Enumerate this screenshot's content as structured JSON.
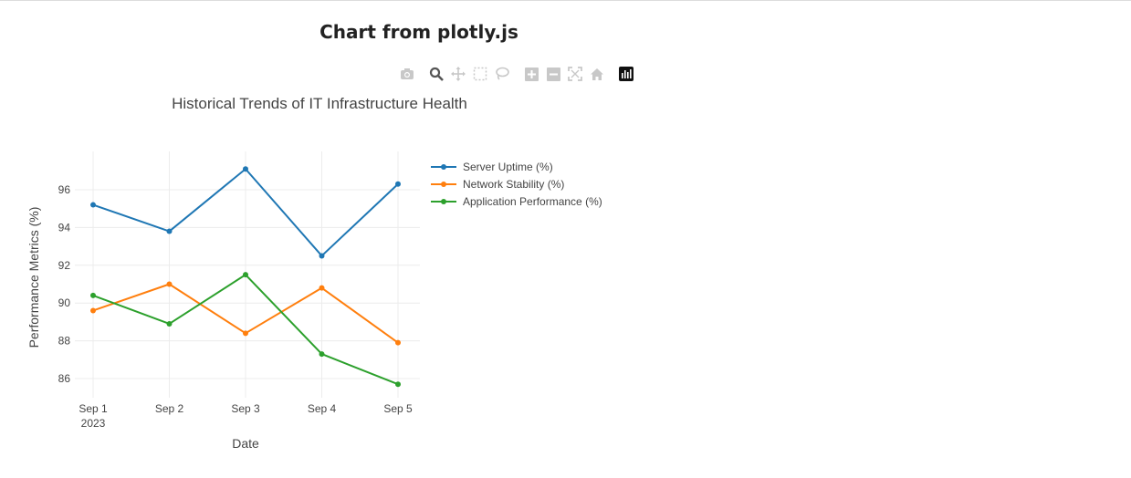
{
  "page": {
    "title": "Chart from plotly.js"
  },
  "modebar": {
    "icons": [
      "camera-icon",
      "zoom-icon",
      "pan-icon",
      "box-select-icon",
      "lasso-select-icon",
      "zoom-in-icon",
      "zoom-out-icon",
      "autoscale-icon",
      "reset-axes-icon",
      "plotly-logo-icon"
    ]
  },
  "chart_data": {
    "type": "line",
    "title": "Historical Trends of IT Infrastructure Health",
    "xlabel": "Date",
    "ylabel": "Performance Metrics (%)",
    "categories": [
      "Sep 1",
      "Sep 2",
      "Sep 3",
      "Sep 4",
      "Sep 5"
    ],
    "x_year_label": "2023",
    "ylim": [
      85,
      98
    ],
    "yticks": [
      86,
      88,
      90,
      92,
      94,
      96
    ],
    "grid": true,
    "legend_position": "right",
    "series": [
      {
        "name": "Server Uptime (%)",
        "color": "#1f77b4",
        "values": [
          95.2,
          93.8,
          97.1,
          92.5,
          96.3
        ]
      },
      {
        "name": "Network Stability (%)",
        "color": "#ff7f0e",
        "values": [
          89.6,
          91.0,
          88.4,
          90.8,
          87.9
        ]
      },
      {
        "name": "Application Performance (%)",
        "color": "#2ca02c",
        "values": [
          90.4,
          88.9,
          91.5,
          87.3,
          85.7
        ]
      }
    ]
  }
}
